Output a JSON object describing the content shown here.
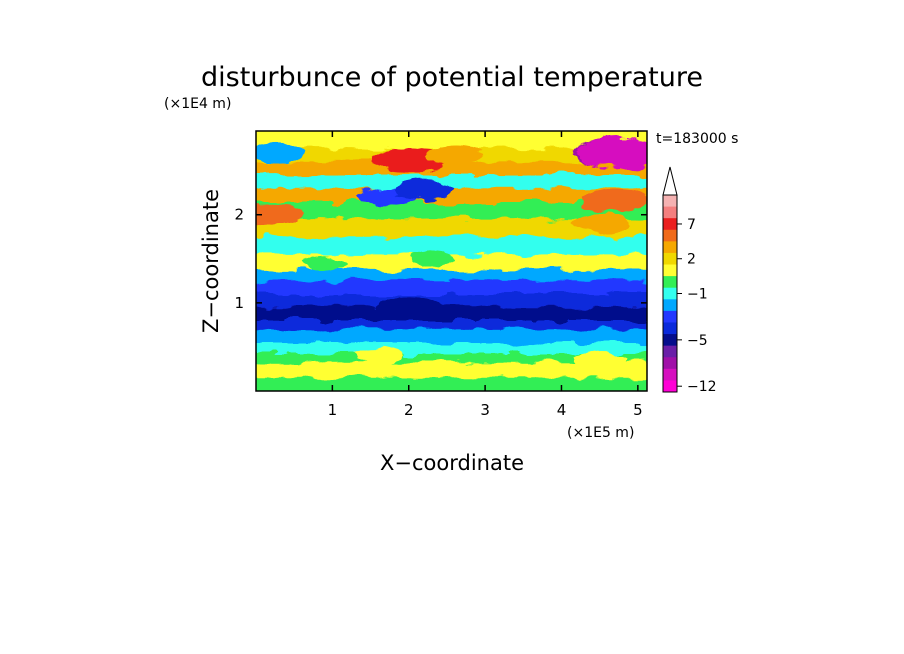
{
  "chart_data": {
    "type": "heatmap",
    "title": "disturbunce of potential temperature",
    "time_label": "t=183000 s",
    "xlabel": "X−coordinate",
    "ylabel": "Z−coordinate",
    "x_unit": "(×1E5 m)",
    "y_unit": "(×1E4 m)",
    "xlim": [
      0,
      5.12
    ],
    "ylim": [
      0,
      2.95
    ],
    "x_ticks": [
      1,
      2,
      3,
      4,
      5
    ],
    "x_tick_labels": [
      "1",
      "2",
      "3",
      "4",
      "5"
    ],
    "y_ticks": [
      1,
      2
    ],
    "y_tick_labels": [
      "1",
      "2"
    ],
    "grid": false,
    "colorbar": {
      "position": "right",
      "label_values": [
        7,
        2,
        -1,
        -5,
        -12
      ],
      "tick_labels": [
        "7",
        "2",
        "−1",
        "−5",
        "−12"
      ],
      "levels": [
        {
          "value": 9.5,
          "color": "#f5b2b2"
        },
        {
          "value": 8.5,
          "color": "#f47f7f"
        },
        {
          "value": 7,
          "color": "#ea1f1f"
        },
        {
          "value": 5,
          "color": "#f06a1a"
        },
        {
          "value": 3,
          "color": "#f5a800"
        },
        {
          "value": 2,
          "color": "#f0d800"
        },
        {
          "value": 1,
          "color": "#ffff33"
        },
        {
          "value": 0,
          "color": "#33ee55"
        },
        {
          "value": -1,
          "color": "#33ffee"
        },
        {
          "value": -2,
          "color": "#00a8ff"
        },
        {
          "value": -3,
          "color": "#2238ff"
        },
        {
          "value": -4,
          "color": "#0a2adb"
        },
        {
          "value": -5,
          "color": "#050e8c"
        },
        {
          "value": -7,
          "color": "#6a1fa8"
        },
        {
          "value": -9,
          "color": "#a010a8"
        },
        {
          "value": -11,
          "color": "#d60fbf"
        },
        {
          "value": -12,
          "color": "#ff00d6"
        }
      ]
    },
    "bands": [
      {
        "z": 2.9,
        "value": 1
      },
      {
        "z": 2.75,
        "value": 2
      },
      {
        "z": 2.6,
        "value": 3
      },
      {
        "z": 2.45,
        "value": -1
      },
      {
        "z": 2.3,
        "value": 3
      },
      {
        "z": 2.15,
        "value": 0
      },
      {
        "z": 1.95,
        "value": 2
      },
      {
        "z": 1.75,
        "value": -1
      },
      {
        "z": 1.55,
        "value": 1
      },
      {
        "z": 1.38,
        "value": -2
      },
      {
        "z": 1.25,
        "value": -3
      },
      {
        "z": 1.1,
        "value": -4
      },
      {
        "z": 0.95,
        "value": -5
      },
      {
        "z": 0.8,
        "value": -4
      },
      {
        "z": 0.7,
        "value": -2
      },
      {
        "z": 0.55,
        "value": -1
      },
      {
        "z": 0.42,
        "value": 0
      },
      {
        "z": 0.32,
        "value": 1
      },
      {
        "z": 0.15,
        "value": 0
      }
    ],
    "features": [
      {
        "x": 2.0,
        "z": 2.62,
        "value": 7
      },
      {
        "x": 2.6,
        "z": 2.68,
        "value": 3
      },
      {
        "x": 4.7,
        "z": 2.7,
        "value": -9
      },
      {
        "x": 4.8,
        "z": 2.7,
        "value": -11
      },
      {
        "x": 0.2,
        "z": 2.0,
        "value": 5
      },
      {
        "x": 4.7,
        "z": 2.15,
        "value": 5
      },
      {
        "x": 1.7,
        "z": 2.2,
        "value": -3
      },
      {
        "x": 2.2,
        "z": 2.28,
        "value": -4
      },
      {
        "x": 0.3,
        "z": 2.7,
        "value": -2
      },
      {
        "x": 4.5,
        "z": 1.9,
        "value": 3
      },
      {
        "x": 0.9,
        "z": 1.45,
        "value": 0
      },
      {
        "x": 2.3,
        "z": 1.5,
        "value": 0
      },
      {
        "x": 2.0,
        "z": 0.95,
        "value": -5
      },
      {
        "x": 1.6,
        "z": 0.4,
        "value": 1
      },
      {
        "x": 4.5,
        "z": 0.35,
        "value": 1
      },
      {
        "x": 3.5,
        "z": 0.6,
        "value": -2
      }
    ]
  }
}
